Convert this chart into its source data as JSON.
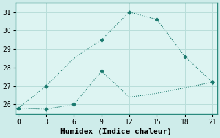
{
  "line1_x": [
    0,
    3,
    6,
    9,
    12,
    15,
    18,
    21
  ],
  "line1_y": [
    25.8,
    27.0,
    28.5,
    29.5,
    31.0,
    30.6,
    28.6,
    27.2
  ],
  "line2_x": [
    0,
    3,
    6,
    9,
    12,
    15,
    18,
    21
  ],
  "line2_y": [
    25.8,
    25.75,
    26.0,
    27.8,
    26.4,
    26.6,
    26.9,
    27.2
  ],
  "line1_markers_x": [
    0,
    3,
    9,
    12,
    15,
    18,
    21
  ],
  "line1_markers_y": [
    25.8,
    27.0,
    29.5,
    31.0,
    30.6,
    28.6,
    27.2
  ],
  "line2_markers_x": [
    0,
    3,
    6,
    9,
    21
  ],
  "line2_markers_y": [
    25.8,
    25.75,
    26.0,
    27.8,
    27.2
  ],
  "line_color": "#1a7a6e",
  "bg_color": "#ceecea",
  "plot_bg_color": "#ddf4f2",
  "grid_color": "#b8deda",
  "xlabel": "Humidex (Indice chaleur)",
  "xticks": [
    0,
    3,
    6,
    9,
    12,
    15,
    18,
    21
  ],
  "yticks": [
    26,
    27,
    28,
    29,
    30,
    31
  ],
  "xlim": [
    -0.3,
    21.5
  ],
  "ylim": [
    25.5,
    31.5
  ],
  "marker": "D",
  "markersize": 2.5,
  "linewidth": 0.8,
  "font_family": "monospace",
  "xlabel_fontsize": 8,
  "tick_fontsize": 7
}
